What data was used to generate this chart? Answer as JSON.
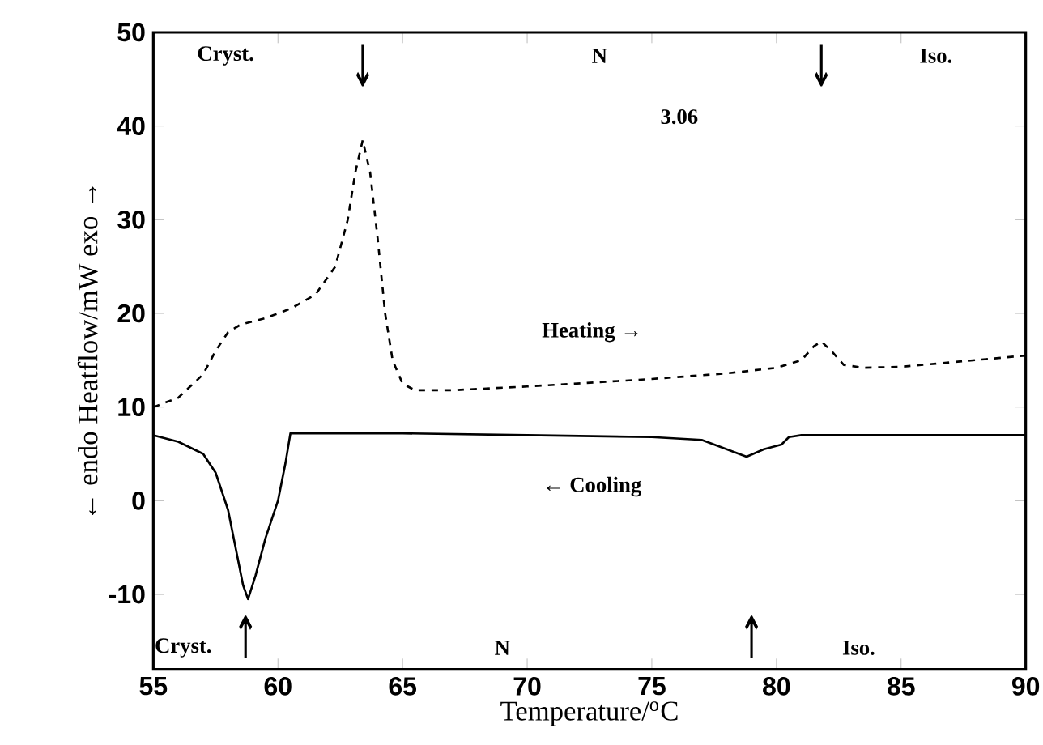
{
  "chart_data": {
    "type": "line",
    "xlabel": "Temperature/$^{o}$C",
    "ylabel": "← endo  Heatflow/mW  exo →",
    "xlim": [
      55,
      90
    ],
    "ylim": [
      -18,
      50
    ],
    "xticks": [
      55,
      60,
      65,
      70,
      75,
      80,
      85,
      90
    ],
    "yticks": [
      -10,
      0,
      10,
      20,
      30,
      40,
      50
    ],
    "grid": false,
    "marker": "none",
    "series": [
      {
        "color": "#000000",
        "line_style": "dashed",
        "x": [
          55,
          56,
          57,
          57.5,
          58,
          58.5,
          59.5,
          60.5,
          61.5,
          62.3,
          62.8,
          63.1,
          63.4,
          63.7,
          64,
          64.3,
          64.6,
          65,
          65.5,
          67,
          70,
          75,
          78,
          80,
          81,
          81.5,
          81.8,
          82.2,
          82.7,
          83.5,
          85,
          90
        ],
        "values": [
          10,
          11,
          13.5,
          16,
          18,
          18.8,
          19.5,
          20.5,
          22,
          25,
          30,
          35,
          38.5,
          35,
          28,
          20,
          15,
          12.5,
          11.8,
          11.8,
          12.2,
          13,
          13.6,
          14.2,
          15,
          16.5,
          17,
          16,
          14.5,
          14.2,
          14.3,
          15.5
        ]
      },
      {
        "color": "#000000",
        "line_style": "solid",
        "x": [
          55,
          56,
          57,
          57.5,
          58,
          58.3,
          58.6,
          58.8,
          59.1,
          59.5,
          60,
          60.3,
          60.5,
          65,
          70,
          75,
          77,
          78,
          78.8,
          79.5,
          80.2,
          80.5,
          81,
          90
        ],
        "values": [
          7,
          6.3,
          5,
          3,
          -1,
          -5,
          -9,
          -10.5,
          -8,
          -4,
          0,
          4,
          7.2,
          7.2,
          7,
          6.8,
          6.5,
          5.5,
          4.7,
          5.5,
          6,
          6.8,
          7,
          7
        ]
      }
    ],
    "annotations": [
      "↓",
      "↓",
      "↑",
      "↑",
      "Cryst.",
      "N",
      "Iso.",
      "3.06",
      "Heating →",
      "← Cooling",
      "Cryst.",
      "N",
      "Iso."
    ]
  }
}
